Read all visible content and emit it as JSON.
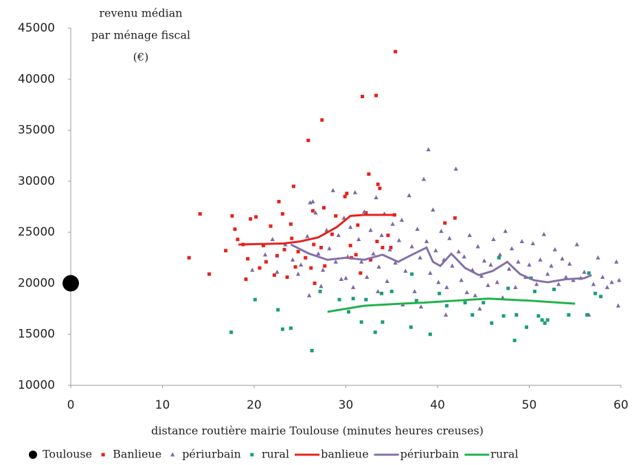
{
  "chart_data": {
    "type": "scatter",
    "y_label": [
      "revenu médian",
      "par ménage fiscal",
      "(€)"
    ],
    "x_label": "distance routière mairie Toulouse (minutes heures creuses)",
    "xlim": [
      0,
      60
    ],
    "xticks": [
      0,
      10,
      20,
      30,
      40,
      50,
      60
    ],
    "ylim": [
      10000,
      45000
    ],
    "yticks": [
      10000,
      15000,
      20000,
      25000,
      30000,
      35000,
      40000,
      45000
    ],
    "grid": false,
    "legend": "bottom",
    "series": [
      {
        "name": "Toulouse",
        "color": "#000000",
        "style": "markers",
        "marker": "circle",
        "x": [
          0
        ],
        "y": [
          20000
        ]
      },
      {
        "name": "Banlieue",
        "color": "#e8201c",
        "style": "markers",
        "marker": "square",
        "x": [
          12.9,
          14.1,
          15.1,
          16.9,
          17.6,
          17.9,
          18.2,
          18.8,
          19.1,
          19.3,
          19.6,
          20.2,
          20.6,
          21.0,
          21.3,
          21.8,
          22.2,
          22.5,
          22.7,
          23.1,
          23.3,
          23.6,
          24.0,
          24.1,
          24.3,
          24.5,
          24.8,
          25.6,
          25.9,
          26.2,
          26.4,
          26.5,
          26.6,
          27.3,
          27.4,
          27.6,
          27.7,
          28.5,
          28.9,
          29.9,
          30.1,
          30.5,
          30.6,
          31.1,
          31.3,
          31.6,
          31.8,
          32.2,
          32.5,
          32.7,
          33.3,
          33.4,
          33.5,
          33.7,
          34.0,
          34.6,
          34.9,
          35.3,
          35.4,
          40.8,
          41.9
        ],
        "y": [
          22500,
          26800,
          20900,
          23200,
          26600,
          25300,
          24300,
          23800,
          20400,
          22400,
          26300,
          26500,
          21500,
          23700,
          22100,
          25600,
          20800,
          22700,
          28000,
          26800,
          23300,
          20600,
          25800,
          24400,
          29500,
          21600,
          23100,
          22500,
          34000,
          21500,
          27100,
          23800,
          20000,
          23500,
          36000,
          27400,
          21700,
          24800,
          26600,
          28500,
          28800,
          23700,
          22500,
          22800,
          25700,
          21000,
          38300,
          26900,
          30700,
          22300,
          38400,
          24100,
          29700,
          29300,
          23500,
          24700,
          23500,
          26700,
          42700,
          25900,
          26400
        ]
      },
      {
        "name": "périurbain",
        "color": "#7f67a8",
        "style": "markers",
        "marker": "triangle",
        "x": [
          19.8,
          21.2,
          22.5,
          23.4,
          24.2,
          25.1,
          25.8,
          26.1,
          26.4,
          26.0,
          26.7,
          27.0,
          27.5,
          27.9,
          28.2,
          28.6,
          28.9,
          29.2,
          29.5,
          29.8,
          30.2,
          30.5,
          30.8,
          31.0,
          31.4,
          31.7,
          32.0,
          32.3,
          32.7,
          33.0,
          33.3,
          33.6,
          33.9,
          34.2,
          34.5,
          34.8,
          35.1,
          35.4,
          35.8,
          36.1,
          36.5,
          36.9,
          37.2,
          37.5,
          37.8,
          38.1,
          38.5,
          38.8,
          39.0,
          39.2,
          39.5,
          39.8,
          40.1,
          40.4,
          40.7,
          41.0,
          41.3,
          41.6,
          42.0,
          42.3,
          42.6,
          42.9,
          43.2,
          43.5,
          43.8,
          44.1,
          44.4,
          44.8,
          45.1,
          45.5,
          45.8,
          46.1,
          46.5,
          46.8,
          47.1,
          47.4,
          47.8,
          48.1,
          48.5,
          48.8,
          49.2,
          49.6,
          50.0,
          50.4,
          50.8,
          51.2,
          51.6,
          52.0,
          52.4,
          52.8,
          53.2,
          53.6,
          54.0,
          54.4,
          54.8,
          55.2,
          55.6,
          56.0,
          56.5,
          57.0,
          57.5,
          58.0,
          58.5,
          59.0,
          59.5,
          59.7,
          59.8,
          22.0,
          24.8,
          27.3,
          30.0,
          33.5,
          36.2,
          38.2,
          40.9,
          44.6
        ],
        "y": [
          21300,
          22800,
          21100,
          23800,
          22300,
          21800,
          24600,
          27900,
          28000,
          18800,
          26900,
          22900,
          21300,
          25200,
          23400,
          29100,
          22100,
          24700,
          20400,
          26400,
          22600,
          25500,
          19600,
          28900,
          24300,
          22100,
          27000,
          20600,
          25200,
          22900,
          28400,
          21600,
          24700,
          26800,
          20200,
          23300,
          25800,
          22000,
          24200,
          26200,
          21200,
          28600,
          23600,
          19200,
          25300,
          22500,
          30200,
          24100,
          33100,
          21000,
          27200,
          23200,
          20100,
          25100,
          22300,
          19600,
          24400,
          21700,
          31200,
          23100,
          20300,
          22600,
          19100,
          24700,
          21300,
          18800,
          23600,
          20700,
          22200,
          19800,
          21800,
          24300,
          20100,
          22800,
          18600,
          25100,
          21400,
          23400,
          19600,
          22100,
          24100,
          20600,
          21800,
          23900,
          19900,
          22300,
          24800,
          20900,
          21700,
          23300,
          19900,
          22400,
          20600,
          21900,
          20300,
          23800,
          20500,
          21100,
          16900,
          19900,
          22500,
          20600,
          19600,
          20100,
          22100,
          17800,
          20300,
          24300,
          20900,
          19700,
          20500,
          19200,
          17900,
          17700,
          16900,
          17500
        ]
      },
      {
        "name": "rural",
        "color": "#1a9d7b",
        "style": "markers",
        "marker": "square",
        "x": [
          17.5,
          20.1,
          22.6,
          23.1,
          24.0,
          26.3,
          27.2,
          29.3,
          30.3,
          30.8,
          31.7,
          32.2,
          33.2,
          34.0,
          33.9,
          35.0,
          37.1,
          37.2,
          37.7,
          39.2,
          40.2,
          41.0,
          43.0,
          43.8,
          45.0,
          45.9,
          46.7,
          47.2,
          47.7,
          48.4,
          48.6,
          49.7,
          50.2,
          50.6,
          51.0,
          51.4,
          51.7,
          52.0,
          52.7,
          54.3,
          56.3,
          57.2,
          57.8,
          56.5
        ],
        "y": [
          15200,
          18400,
          17400,
          15500,
          15600,
          13400,
          19200,
          18400,
          17200,
          18500,
          16200,
          18400,
          15200,
          16200,
          19000,
          19200,
          15700,
          20900,
          18300,
          15000,
          19000,
          17800,
          18100,
          16900,
          18100,
          16100,
          22500,
          16800,
          19500,
          14400,
          16900,
          15700,
          20500,
          19200,
          16800,
          16400,
          16100,
          16400,
          19400,
          16900,
          16900,
          19000,
          18700,
          21000
        ]
      },
      {
        "name": "banlieue",
        "color": "#e8201c",
        "style": "line",
        "x": [
          18.3,
          23.2,
          25.0,
          27.0,
          29.0,
          30.5,
          32.0,
          35.5
        ],
        "y": [
          23800,
          23900,
          24100,
          24500,
          25500,
          26600,
          26700,
          26700
        ]
      },
      {
        "name": "périurbain",
        "color": "#8470a8",
        "style": "line",
        "x": [
          24,
          26,
          28,
          30,
          32,
          34,
          35.7,
          37,
          38.8,
          39.5,
          40.3,
          41.5,
          43,
          44.5,
          46,
          47.6,
          49,
          50.5,
          52,
          54,
          56,
          56.8
        ],
        "y": [
          23800,
          22900,
          22300,
          22500,
          22300,
          22800,
          22100,
          22700,
          23500,
          22100,
          21700,
          22900,
          21500,
          20800,
          21200,
          22100,
          20900,
          20300,
          20100,
          20400,
          20500,
          20800
        ]
      },
      {
        "name": "rural",
        "color": "#1fb14a",
        "style": "line",
        "x": [
          28,
          32,
          36,
          38.5,
          42,
          45.5,
          50,
          55
        ],
        "y": [
          17200,
          17800,
          18000,
          18100,
          18300,
          18500,
          18300,
          18000
        ]
      }
    ]
  }
}
